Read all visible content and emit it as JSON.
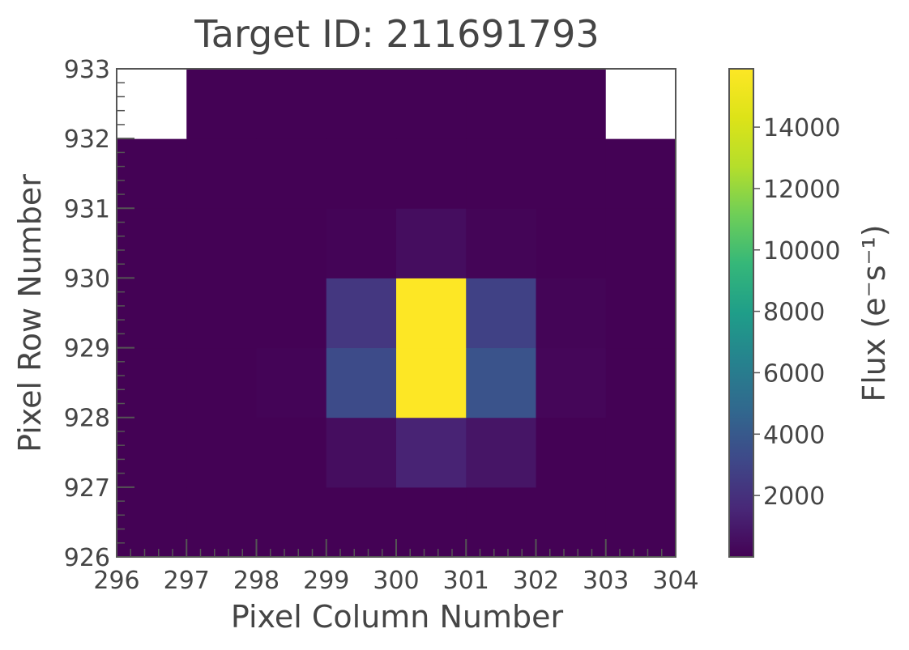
{
  "chart_data": {
    "type": "heatmap",
    "title": "Target ID: 211691793",
    "xlabel": "Pixel Column Number",
    "ylabel": "Pixel Row Number",
    "colorbar_label": "Flux (e⁻s⁻¹)",
    "xlim": [
      296,
      304
    ],
    "ylim": [
      926,
      933
    ],
    "x_ticks": [
      "296",
      "297",
      "298",
      "299",
      "300",
      "301",
      "302",
      "303",
      "304"
    ],
    "y_ticks": [
      "926",
      "927",
      "928",
      "929",
      "930",
      "931",
      "932",
      "933"
    ],
    "colorbar_ticks": [
      "2000",
      "4000",
      "6000",
      "8000",
      "10000",
      "12000",
      "14000"
    ],
    "colorbar_range": [
      0,
      15900
    ],
    "colormap": "viridis",
    "cell_origin": {
      "column": 296,
      "row": 926
    },
    "cell_size": 1,
    "values_description": "rows listed bottom-to-top starting at row 926; each value is flux; null = masked (white)",
    "values": [
      [
        30,
        30,
        30,
        30,
        40,
        40,
        30,
        30
      ],
      [
        30,
        30,
        30,
        500,
        1400,
        800,
        60,
        30
      ],
      [
        30,
        30,
        120,
        3300,
        15900,
        3700,
        220,
        40
      ],
      [
        30,
        30,
        60,
        2300,
        15900,
        2800,
        150,
        30
      ],
      [
        30,
        30,
        40,
        130,
        500,
        150,
        50,
        30
      ],
      [
        30,
        30,
        30,
        40,
        60,
        40,
        30,
        30
      ],
      [
        null,
        30,
        30,
        30,
        30,
        30,
        30,
        null
      ]
    ]
  }
}
